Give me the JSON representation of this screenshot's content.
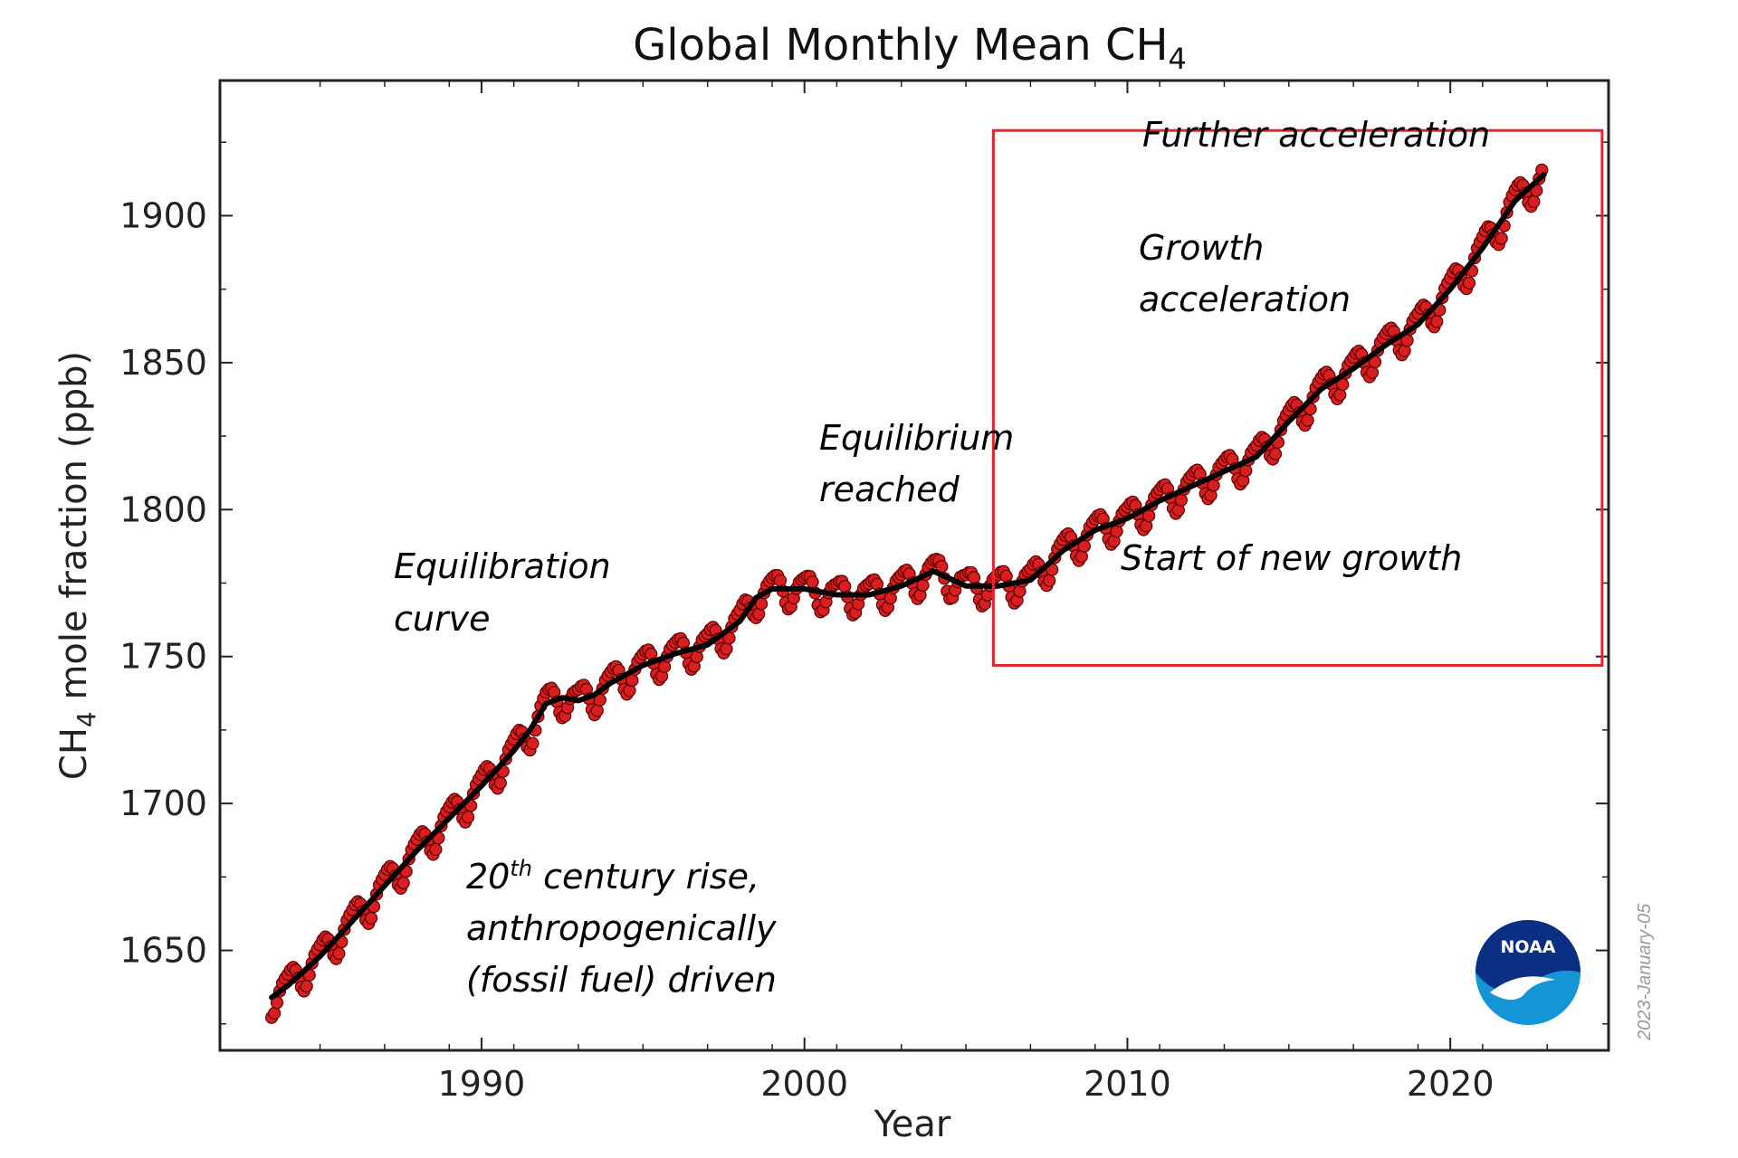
{
  "chart_data": {
    "type": "line",
    "title": "Global Monthly Mean CH",
    "title_subscript": "4",
    "xlabel": "Year",
    "ylabel": "CH",
    "ylabel_subscript": "4",
    "ylabel_suffix": " mole fraction (ppb)",
    "xlim": [
      1981.9,
      2024.9
    ],
    "ylim": [
      1616,
      1946
    ],
    "x_ticks": [
      1990,
      2000,
      2010,
      2020
    ],
    "y_ticks": [
      1650,
      1700,
      1750,
      1800,
      1850,
      1900
    ],
    "grid": false,
    "series": [
      {
        "style": "trend",
        "color": "#000000",
        "x": [
          1983.5,
          1984.0,
          1985.0,
          1986.0,
          1987.0,
          1988.0,
          1989.0,
          1990.0,
          1991.0,
          1991.5,
          1992.0,
          1992.5,
          1993.0,
          1993.5,
          1994.0,
          1995.0,
          1996.0,
          1997.0,
          1998.0,
          1998.5,
          1999.0,
          2000.0,
          2001.0,
          2002.0,
          2003.0,
          2004.0,
          2005.0,
          2006.0,
          2007.0,
          2008.0,
          2009.0,
          2010.0,
          2011.0,
          2012.0,
          2013.0,
          2014.0,
          2015.0,
          2016.0,
          2017.0,
          2018.0,
          2019.0,
          2020.0,
          2021.0,
          2022.0,
          2022.9
        ],
        "y": [
          1634,
          1638,
          1648,
          1660,
          1672,
          1684,
          1695,
          1706,
          1718,
          1725,
          1734,
          1736,
          1735,
          1737,
          1741,
          1747,
          1751,
          1754,
          1762,
          1770,
          1773,
          1773,
          1771,
          1771,
          1774,
          1779,
          1774,
          1774,
          1776,
          1786,
          1793,
          1797,
          1803,
          1808,
          1813,
          1818,
          1830,
          1841,
          1848,
          1856,
          1863,
          1875,
          1889,
          1905,
          1914
        ]
      },
      {
        "style": "monthly",
        "color": "#d81e1e",
        "seasonal_amplitude_ppb": 5.5,
        "x_start": 1983.5,
        "x_end": 2022.9
      }
    ],
    "annotations": [
      {
        "lines": [
          "20th century rise,",
          "anthropogenically",
          "(fossil fuel) driven"
        ],
        "superscript": "th"
      },
      {
        "lines": [
          "Equilibration",
          "curve"
        ]
      },
      {
        "lines": [
          "Equilibrium",
          "reached"
        ]
      },
      {
        "lines": [
          "Start of new growth"
        ]
      },
      {
        "lines": [
          "Growth",
          "acceleration"
        ]
      },
      {
        "lines": [
          "Further acceleration"
        ]
      }
    ],
    "highlight_box": {
      "x_from": 2005.85,
      "x_to": 2024.7,
      "y_from": 1747,
      "y_to": 1929,
      "color": "#e3262d"
    },
    "stamp": "2023-January-05",
    "logo": {
      "text": "NOAA",
      "color_primary": "#0b2f82",
      "color_secondary": "#1496d6"
    }
  }
}
